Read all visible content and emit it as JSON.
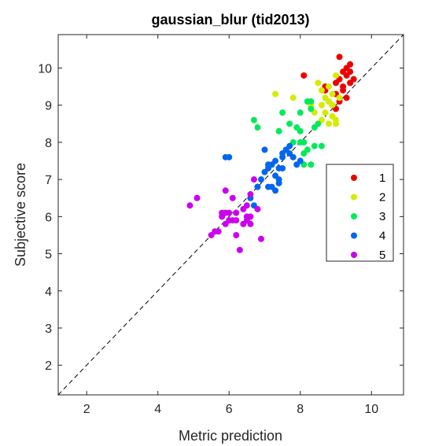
{
  "chart_data": {
    "type": "scatter",
    "title": "gaussian_blur (tid2013)",
    "xlabel": "Metric prediction",
    "ylabel": "Subjective score",
    "xlim": [
      1.2,
      10.9
    ],
    "ylim": [
      1.2,
      10.9
    ],
    "xticks": [
      2,
      4,
      6,
      8,
      10
    ],
    "yticks": [
      2,
      3,
      4,
      5,
      6,
      7,
      8,
      9,
      10
    ],
    "grid": false,
    "legend_position": "right",
    "diagonal_reference": true,
    "series": [
      {
        "name": "1",
        "color": "#ee0000",
        "points": [
          [
            8.1,
            9.8
          ],
          [
            8.7,
            9.4
          ],
          [
            8.7,
            9.5
          ],
          [
            8.9,
            9.0
          ],
          [
            9.0,
            8.9
          ],
          [
            9.0,
            9.3
          ],
          [
            9.0,
            9.6
          ],
          [
            9.1,
            9.7
          ],
          [
            9.1,
            10.3
          ],
          [
            9.2,
            9.5
          ],
          [
            9.2,
            9.9
          ],
          [
            9.3,
            10.0
          ],
          [
            9.3,
            9.2
          ],
          [
            9.3,
            9.8
          ],
          [
            9.4,
            9.6
          ],
          [
            9.4,
            10.1
          ],
          [
            9.5,
            9.7
          ],
          [
            9.2,
            9.4
          ],
          [
            9.1,
            9.1
          ],
          [
            9.4,
            9.9
          ]
        ]
      },
      {
        "name": "2",
        "color": "#d4ec00",
        "points": [
          [
            7.3,
            9.3
          ],
          [
            7.8,
            9.2
          ],
          [
            8.3,
            9.0
          ],
          [
            8.4,
            8.8
          ],
          [
            8.5,
            9.6
          ],
          [
            8.6,
            9.4
          ],
          [
            8.6,
            8.6
          ],
          [
            8.7,
            9.2
          ],
          [
            8.7,
            8.8
          ],
          [
            8.8,
            9.1
          ],
          [
            8.8,
            9.5
          ],
          [
            8.8,
            8.5
          ],
          [
            8.9,
            9.0
          ],
          [
            8.9,
            9.3
          ],
          [
            9.0,
            9.8
          ],
          [
            9.0,
            8.6
          ],
          [
            9.0,
            8.5
          ],
          [
            9.1,
            9.2
          ],
          [
            8.6,
            9.0
          ],
          [
            8.9,
            8.7
          ]
        ]
      },
      {
        "name": "3",
        "color": "#00ea5a",
        "points": [
          [
            6.7,
            8.6
          ],
          [
            6.8,
            8.4
          ],
          [
            7.4,
            8.3
          ],
          [
            7.5,
            8.8
          ],
          [
            7.7,
            8.5
          ],
          [
            7.8,
            8.0
          ],
          [
            7.9,
            8.4
          ],
          [
            8.0,
            8.8
          ],
          [
            8.0,
            8.3
          ],
          [
            8.1,
            7.7
          ],
          [
            8.1,
            7.4
          ],
          [
            8.1,
            8.0
          ],
          [
            8.2,
            7.8
          ],
          [
            8.3,
            9.1
          ],
          [
            8.3,
            8.9
          ],
          [
            8.3,
            7.4
          ],
          [
            8.4,
            8.4
          ],
          [
            8.4,
            7.9
          ],
          [
            8.5,
            8.5
          ],
          [
            8.6,
            7.9
          ],
          [
            8.0,
            8.0
          ],
          [
            8.2,
            9.1
          ]
        ]
      },
      {
        "name": "4",
        "color": "#0066ee",
        "points": [
          [
            5.9,
            7.6
          ],
          [
            6.0,
            7.6
          ],
          [
            6.7,
            6.3
          ],
          [
            6.8,
            6.8
          ],
          [
            6.8,
            6.8
          ],
          [
            6.9,
            7.0
          ],
          [
            7.0,
            7.2
          ],
          [
            7.0,
            7.8
          ],
          [
            7.1,
            6.8
          ],
          [
            7.1,
            7.3
          ],
          [
            7.2,
            6.8
          ],
          [
            7.2,
            7.4
          ],
          [
            7.3,
            6.7
          ],
          [
            7.3,
            7.1
          ],
          [
            7.3,
            7.5
          ],
          [
            7.4,
            7.3
          ],
          [
            7.4,
            7.0
          ],
          [
            7.4,
            6.9
          ],
          [
            7.5,
            7.6
          ],
          [
            7.5,
            7.7
          ],
          [
            7.5,
            7.3
          ],
          [
            7.6,
            7.8
          ],
          [
            7.7,
            7.9
          ],
          [
            7.7,
            7.7
          ],
          [
            7.8,
            7.6
          ],
          [
            7.9,
            7.4
          ],
          [
            8.0,
            7.5
          ],
          [
            6.6,
            6.5
          ],
          [
            7.1,
            7.4
          ]
        ]
      },
      {
        "name": "5",
        "color": "#cc00ee",
        "points": [
          [
            4.9,
            6.3
          ],
          [
            5.1,
            6.5
          ],
          [
            5.5,
            5.5
          ],
          [
            5.6,
            5.6
          ],
          [
            5.7,
            5.6
          ],
          [
            5.8,
            6.1
          ],
          [
            5.8,
            6.0
          ],
          [
            5.9,
            6.1
          ],
          [
            5.9,
            6.7
          ],
          [
            5.9,
            5.8
          ],
          [
            6.0,
            5.9
          ],
          [
            6.0,
            6.1
          ],
          [
            6.1,
            5.9
          ],
          [
            6.1,
            6.5
          ],
          [
            6.2,
            5.5
          ],
          [
            6.2,
            5.9
          ],
          [
            6.3,
            5.1
          ],
          [
            6.4,
            6.2
          ],
          [
            6.4,
            5.8
          ],
          [
            6.5,
            6.0
          ],
          [
            6.5,
            6.3
          ],
          [
            6.6,
            6.0
          ],
          [
            6.6,
            5.8
          ],
          [
            6.6,
            6.6
          ],
          [
            6.7,
            7.0
          ],
          [
            6.8,
            6.2
          ],
          [
            6.9,
            5.4
          ],
          [
            6.2,
            6.1
          ],
          [
            6.5,
            5.9
          ]
        ]
      }
    ]
  }
}
